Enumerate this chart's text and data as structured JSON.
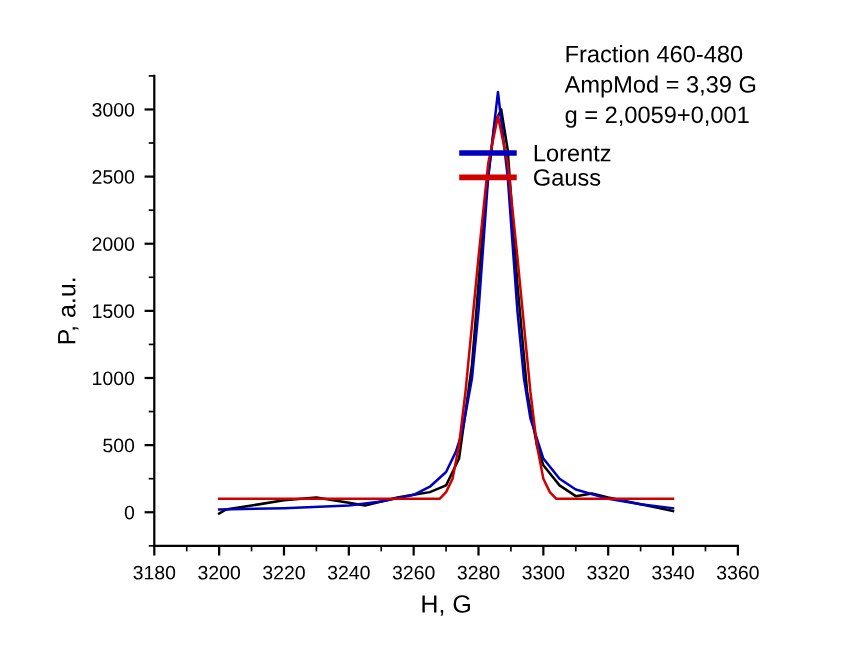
{
  "chart_data": {
    "type": "line",
    "xlabel": "H, G",
    "ylabel": "P, a.u.",
    "annotations": [
      "Fraction 460-480",
      "AmpMod = 3,39 G",
      "g = 2,0059+0,001"
    ],
    "xlim": [
      3180,
      3360
    ],
    "xticks": [
      3180,
      3200,
      3220,
      3240,
      3260,
      3280,
      3300,
      3320,
      3340,
      3360
    ],
    "ylim": [
      -250,
      3250
    ],
    "yticks": [
      0,
      500,
      1000,
      1500,
      2000,
      2500,
      3000
    ],
    "grid": false,
    "legend": "top right",
    "marker": "none",
    "line_style": "solid",
    "series": [
      {
        "color": "#000000",
        "x": [
          3200,
          3202,
          3210,
          3220,
          3230,
          3240,
          3245,
          3250,
          3255,
          3260,
          3265,
          3270,
          3274,
          3278,
          3282,
          3285,
          3287,
          3289,
          3292,
          3295,
          3298,
          3300,
          3305,
          3310,
          3315,
          3320,
          3330,
          3340
        ],
        "values": [
          -10,
          20,
          50,
          90,
          110,
          70,
          50,
          80,
          110,
          130,
          150,
          200,
          400,
          1100,
          2300,
          2900,
          3000,
          2700,
          1700,
          900,
          500,
          350,
          200,
          120,
          140,
          110,
          60,
          10
        ]
      },
      {
        "name": "Lorentz",
        "color": "#0000c0",
        "x": [
          3200,
          3220,
          3240,
          3250,
          3260,
          3265,
          3270,
          3273,
          3275,
          3278,
          3280,
          3283,
          3286,
          3289,
          3292,
          3294,
          3296,
          3300,
          3305,
          3310,
          3320,
          3330,
          3340
        ],
        "values": [
          20,
          30,
          50,
          80,
          130,
          190,
          300,
          450,
          600,
          1000,
          1500,
          2500,
          3130,
          2500,
          1500,
          1000,
          700,
          400,
          250,
          170,
          100,
          60,
          30
        ]
      },
      {
        "name": "Gauss",
        "color": "#d00000",
        "x": [
          3200,
          3268,
          3270,
          3272,
          3274,
          3276,
          3278,
          3280,
          3283,
          3286,
          3289,
          3292,
          3294,
          3296,
          3298,
          3300,
          3302,
          3304,
          3340
        ],
        "values": [
          100,
          100,
          150,
          250,
          500,
          900,
          1400,
          1900,
          2600,
          2950,
          2600,
          1900,
          1400,
          900,
          500,
          250,
          150,
          100,
          100
        ]
      }
    ]
  }
}
